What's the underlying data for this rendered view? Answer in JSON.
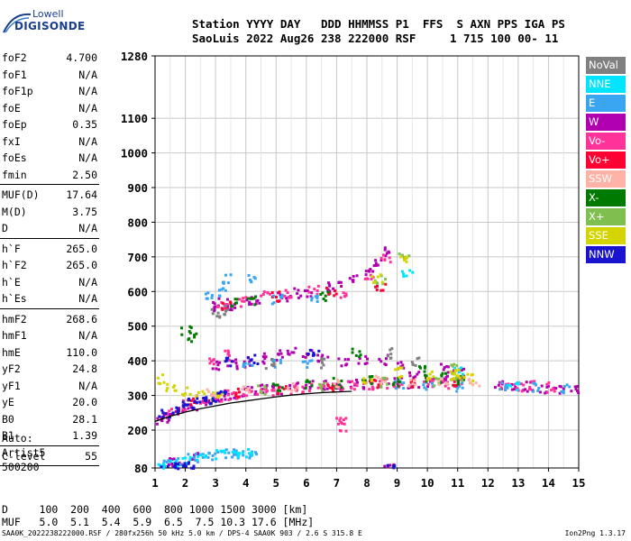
{
  "logo": {
    "line1": "Lowell",
    "line2": "DIGISONDE"
  },
  "header": {
    "line1": "Station YYYY DAY   DDD HHMMSS P1  FFS  S AXN PPS IGA PS",
    "line2": "SaoLuis 2022 Aug26 238 222000 RSF     1 715 100 00- 11"
  },
  "params": [
    {
      "k": "foF2",
      "v": "4.700"
    },
    {
      "k": "foF1",
      "v": "N/A"
    },
    {
      "k": "foF1p",
      "v": "N/A"
    },
    {
      "k": "foE",
      "v": "N/A"
    },
    {
      "k": "foEp",
      "v": "0.35"
    },
    {
      "k": "fxI",
      "v": "N/A"
    },
    {
      "k": "foEs",
      "v": "N/A"
    },
    {
      "k": "fmin",
      "v": "2.50"
    },
    {
      "k": "MUF(D)",
      "v": "17.64"
    },
    {
      "k": "M(D)",
      "v": "3.75"
    },
    {
      "k": "D",
      "v": "N/A"
    },
    {
      "k": "h`F",
      "v": "265.0"
    },
    {
      "k": "h`F2",
      "v": "265.0"
    },
    {
      "k": "h`E",
      "v": "N/A"
    },
    {
      "k": "h`Es",
      "v": "N/A"
    },
    {
      "k": "hmF2",
      "v": "268.6"
    },
    {
      "k": "hmF1",
      "v": "N/A"
    },
    {
      "k": "hmE",
      "v": "110.0"
    },
    {
      "k": "yF2",
      "v": "24.8"
    },
    {
      "k": "yF1",
      "v": "N/A"
    },
    {
      "k": "yE",
      "v": "20.0"
    },
    {
      "k": "B0",
      "v": "28.1"
    },
    {
      "k": "B1",
      "v": "1.39"
    },
    {
      "k": "C-level",
      "v": "55"
    }
  ],
  "auto": [
    "Auto:",
    "Artist5",
    "500200"
  ],
  "muf_table": {
    "line1": "D     100  200  400  600  800 1000 1500 3000 [km]",
    "line2": "MUF   5.0  5.1  5.4  5.9  6.5  7.5 10.3 17.6 [MHz]"
  },
  "footer": {
    "left": "SAA0K_2022238222000.RSF / 280fx256h 50 kHz 5.0 km / DPS-4 SAA0K 903 / 2.6 S 315.8 E",
    "right": "Ion2Png 1.3.17"
  },
  "legend": [
    {
      "label": "NoVal",
      "color": "#808080"
    },
    {
      "label": "NNE",
      "color": "#00e5ff"
    },
    {
      "label": "E",
      "color": "#3aa5f0"
    },
    {
      "label": "W",
      "color": "#b000b0"
    },
    {
      "label": "Vo-",
      "color": "#ff3399"
    },
    {
      "label": "Vo+",
      "color": "#ff0033"
    },
    {
      "label": "SSW",
      "color": "#ffb3a7"
    },
    {
      "label": "X-",
      "color": "#007a00"
    },
    {
      "label": "X+",
      "color": "#7fbf4f"
    },
    {
      "label": "SSE",
      "color": "#d4d400"
    },
    {
      "label": "NNW",
      "color": "#1a14d0"
    }
  ],
  "chart_data": {
    "type": "scatter",
    "xlabel": "",
    "ylabel": "",
    "x_ticks": [
      "1",
      "2",
      "3",
      "4",
      "5",
      "6",
      "7",
      "8",
      "9",
      "10",
      "11",
      "12",
      "13",
      "14",
      "15"
    ],
    "y_ticks": [
      "80",
      "200",
      "300",
      "400",
      "500",
      "600",
      "700",
      "800",
      "900",
      "1000",
      "1100",
      "1280"
    ],
    "xlim": [
      1,
      15
    ],
    "ylim": [
      80,
      1280
    ],
    "grid": true,
    "series": [
      {
        "name": "W",
        "color": "#b000b0",
        "points": [
          [
            1.1,
            230
          ],
          [
            1.3,
            240
          ],
          [
            1.6,
            255
          ],
          [
            1.9,
            265
          ],
          [
            2.2,
            275
          ],
          [
            2.6,
            285
          ],
          [
            3.0,
            295
          ],
          [
            3.4,
            305
          ],
          [
            3.8,
            310
          ],
          [
            4.2,
            315
          ],
          [
            4.6,
            320
          ],
          [
            5.0,
            322
          ],
          [
            5.5,
            326
          ],
          [
            6.0,
            330
          ],
          [
            6.5,
            332
          ],
          [
            7.0,
            335
          ],
          [
            7.5,
            336
          ],
          [
            8.0,
            338
          ],
          [
            8.5,
            340
          ],
          [
            9.0,
            340
          ],
          [
            9.5,
            340
          ],
          [
            10.0,
            342
          ],
          [
            10.5,
            345
          ],
          [
            11.0,
            345
          ],
          [
            12.3,
            335
          ],
          [
            12.8,
            330
          ],
          [
            13.3,
            330
          ],
          [
            13.8,
            325
          ],
          [
            14.3,
            322
          ],
          [
            14.8,
            325
          ],
          [
            2.8,
            560
          ],
          [
            3.2,
            570
          ],
          [
            3.6,
            565
          ],
          [
            4.0,
            570
          ],
          [
            4.3,
            580
          ],
          [
            5.2,
            590
          ],
          [
            5.6,
            600
          ],
          [
            6.0,
            595
          ],
          [
            6.6,
            615
          ],
          [
            7.0,
            620
          ],
          [
            7.5,
            640
          ],
          [
            8.0,
            660
          ],
          [
            8.3,
            690
          ],
          [
            8.7,
            720
          ],
          [
            3.0,
            390
          ],
          [
            3.5,
            395
          ],
          [
            4.0,
            400
          ],
          [
            4.5,
            410
          ],
          [
            5.0,
            420
          ],
          [
            5.5,
            430
          ],
          [
            6.0,
            420
          ],
          [
            6.5,
            410
          ],
          [
            7.2,
            400
          ],
          [
            7.8,
            410
          ],
          [
            8.5,
            405
          ],
          [
            9.1,
            385
          ],
          [
            9.5,
            370
          ],
          [
            1.4,
            85
          ],
          [
            1.7,
            90
          ],
          [
            2.3,
            120
          ],
          [
            1.5,
            100
          ],
          [
            10.5,
            380
          ],
          [
            11.0,
            375
          ],
          [
            8.7,
            82
          ]
        ]
      },
      {
        "name": "Vo-",
        "color": "#ff3399",
        "points": [
          [
            1.4,
            255
          ],
          [
            2.0,
            275
          ],
          [
            2.5,
            290
          ],
          [
            3.0,
            300
          ],
          [
            3.5,
            305
          ],
          [
            4.0,
            310
          ],
          [
            4.5,
            312
          ],
          [
            5.0,
            318
          ],
          [
            5.5,
            322
          ],
          [
            6.0,
            326
          ],
          [
            6.5,
            330
          ],
          [
            7.0,
            332
          ],
          [
            7.5,
            334
          ],
          [
            8.0,
            336
          ],
          [
            8.5,
            338
          ],
          [
            9.0,
            340
          ],
          [
            10.0,
            340
          ],
          [
            10.5,
            338
          ],
          [
            11.0,
            342
          ],
          [
            12.5,
            330
          ],
          [
            13.0,
            328
          ],
          [
            13.5,
            330
          ],
          [
            14.0,
            326
          ],
          [
            3.2,
            560
          ],
          [
            3.8,
            575
          ],
          [
            4.6,
            590
          ],
          [
            5.4,
            600
          ],
          [
            6.2,
            605
          ],
          [
            7.1,
            600
          ],
          [
            8.0,
            640
          ],
          [
            8.6,
            700
          ],
          [
            2.9,
            400
          ],
          [
            3.4,
            420
          ],
          [
            7.1,
            240
          ],
          [
            7.1,
            210
          ]
        ]
      },
      {
        "name": "Vo+",
        "color": "#ff0033",
        "points": [
          [
            2.2,
            280
          ],
          [
            3.6,
            308
          ],
          [
            5.2,
            320
          ],
          [
            6.8,
            330
          ],
          [
            8.2,
            336
          ],
          [
            9.4,
            340
          ],
          [
            10.8,
            340
          ],
          [
            3.3,
            560
          ],
          [
            5.0,
            590
          ],
          [
            6.8,
            600
          ],
          [
            8.4,
            610
          ]
        ]
      },
      {
        "name": "E",
        "color": "#3aa5f0",
        "points": [
          [
            1.1,
            85
          ],
          [
            1.4,
            95
          ],
          [
            1.8,
            100
          ],
          [
            2.2,
            115
          ],
          [
            2.6,
            120
          ],
          [
            3.0,
            125
          ],
          [
            3.4,
            128
          ],
          [
            3.8,
            130
          ],
          [
            4.2,
            130
          ],
          [
            2.8,
            595
          ],
          [
            3.2,
            600
          ],
          [
            4.2,
            640
          ],
          [
            5.0,
            580
          ],
          [
            6.2,
            585
          ],
          [
            3.3,
            640
          ],
          [
            4.0,
            395
          ],
          [
            5.0,
            400
          ],
          [
            6.0,
            395
          ],
          [
            9.0,
            330
          ],
          [
            10.0,
            335
          ],
          [
            11.0,
            330
          ],
          [
            12.5,
            330
          ],
          [
            13.5,
            325
          ],
          [
            14.5,
            320
          ]
        ]
      },
      {
        "name": "NNE",
        "color": "#00e5ff",
        "points": [
          [
            1.2,
            88
          ],
          [
            1.6,
            96
          ],
          [
            2.0,
            105
          ],
          [
            2.5,
            118
          ],
          [
            3.1,
            126
          ],
          [
            3.6,
            130
          ],
          [
            4.0,
            132
          ],
          [
            11.0,
            380
          ],
          [
            12.8,
            330
          ],
          [
            9.3,
            650
          ]
        ]
      },
      {
        "name": "X-",
        "color": "#007a00",
        "points": [
          [
            2.0,
            490
          ],
          [
            2.2,
            470
          ],
          [
            5.0,
            330
          ],
          [
            6.0,
            335
          ],
          [
            7.0,
            340
          ],
          [
            8.0,
            345
          ],
          [
            9.0,
            345
          ],
          [
            10.0,
            350
          ],
          [
            11.0,
            350
          ],
          [
            3.5,
            570
          ],
          [
            4.2,
            580
          ],
          [
            6.5,
            590
          ],
          [
            9.8,
            375
          ],
          [
            10.5,
            355
          ],
          [
            7.6,
            430
          ]
        ]
      },
      {
        "name": "X+",
        "color": "#7fbf4f",
        "points": [
          [
            3.0,
            300
          ],
          [
            4.5,
            320
          ],
          [
            6.5,
            330
          ],
          [
            8.5,
            340
          ],
          [
            10.2,
            345
          ],
          [
            11.0,
            360
          ],
          [
            8.4,
            640
          ],
          [
            9.2,
            710
          ],
          [
            10.8,
            380
          ]
        ]
      },
      {
        "name": "SSE",
        "color": "#d4d400",
        "points": [
          [
            1.2,
            350
          ],
          [
            1.5,
            330
          ],
          [
            2.0,
            315
          ],
          [
            2.5,
            305
          ],
          [
            3.0,
            300
          ],
          [
            9.0,
            370
          ],
          [
            10.0,
            360
          ],
          [
            11.0,
            370
          ],
          [
            11.3,
            350
          ],
          [
            8.0,
            350
          ],
          [
            8.3,
            640
          ],
          [
            9.2,
            700
          ],
          [
            10.9,
            365
          ]
        ]
      },
      {
        "name": "SSW",
        "color": "#ffb3a7",
        "points": [
          [
            2.8,
            310
          ],
          [
            4.0,
            320
          ],
          [
            5.5,
            330
          ],
          [
            7.0,
            335
          ],
          [
            8.4,
            345
          ],
          [
            9.5,
            345
          ],
          [
            10.5,
            342
          ],
          [
            11.5,
            340
          ]
        ]
      },
      {
        "name": "NNW",
        "color": "#1a14d0",
        "points": [
          [
            1.05,
            235
          ],
          [
            1.3,
            250
          ],
          [
            1.6,
            262
          ],
          [
            1.9,
            270
          ],
          [
            2.2,
            280
          ],
          [
            2.5,
            285
          ],
          [
            2.8,
            290
          ],
          [
            3.2,
            300
          ],
          [
            1.2,
            82
          ],
          [
            1.5,
            84
          ],
          [
            1.8,
            86
          ],
          [
            2.1,
            88
          ],
          [
            8.7,
            83
          ],
          [
            3.4,
            400
          ],
          [
            4.2,
            410
          ],
          [
            6.2,
            430
          ]
        ]
      },
      {
        "name": "NoVal",
        "color": "#808080",
        "points": [
          [
            3.0,
            540
          ],
          [
            3.3,
            550
          ],
          [
            4.8,
            395
          ],
          [
            6.5,
            395
          ],
          [
            8.8,
            425
          ],
          [
            9.6,
            400
          ]
        ]
      }
    ],
    "trace": [
      [
        1.0,
        225
      ],
      [
        1.5,
        240
      ],
      [
        2.0,
        252
      ],
      [
        2.5,
        262
      ],
      [
        3.0,
        270
      ],
      [
        3.5,
        278
      ],
      [
        4.0,
        284
      ],
      [
        4.5,
        290
      ],
      [
        5.0,
        296
      ],
      [
        5.5,
        301
      ],
      [
        6.0,
        305
      ],
      [
        6.5,
        308
      ],
      [
        7.0,
        310
      ],
      [
        7.5,
        312
      ]
    ]
  }
}
